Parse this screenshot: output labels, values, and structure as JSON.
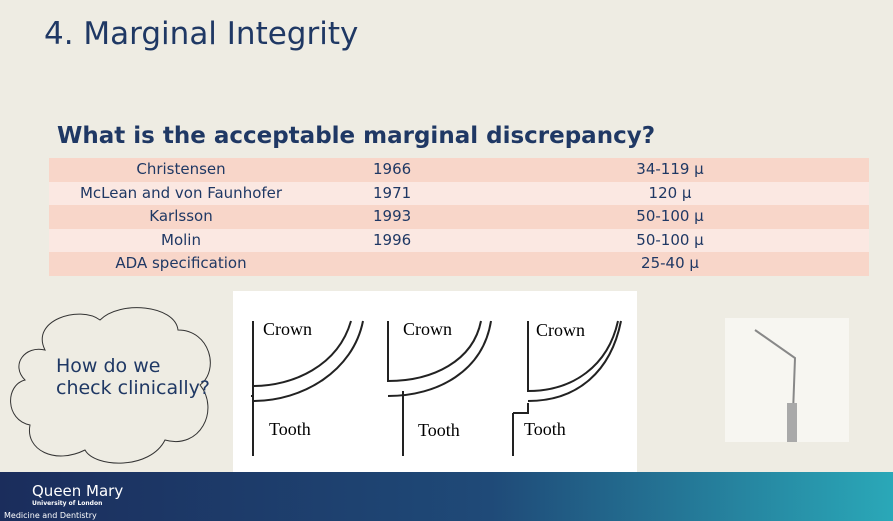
{
  "header": {
    "title": "4. Marginal Integrity",
    "subtitle": "What is the acceptable marginal discrepancy?"
  },
  "table": {
    "rows": [
      {
        "name": "Christensen",
        "year": "1966",
        "value": "34-119 µ"
      },
      {
        "name": "McLean and von Faunhofer",
        "year": "1971",
        "value": "120 µ"
      },
      {
        "name": "Karlsson",
        "year": "1993",
        "value": "50-100 µ"
      },
      {
        "name": "Molin",
        "year": "1996",
        "value": "50-100 µ"
      },
      {
        "name": "ADA specification",
        "value": "25-40 µ"
      }
    ]
  },
  "cloud": {
    "text": "How do we check clinically?"
  },
  "diagram": {
    "panels": [
      {
        "top": "Crown",
        "bottom": "Tooth"
      },
      {
        "top": "Crown",
        "bottom": "Tooth"
      },
      {
        "top": "Crown",
        "bottom": "Tooth"
      }
    ]
  },
  "footer": {
    "logo": "Queen Mary",
    "university": "University of London",
    "faculty": "Medicine and Dentistry"
  }
}
